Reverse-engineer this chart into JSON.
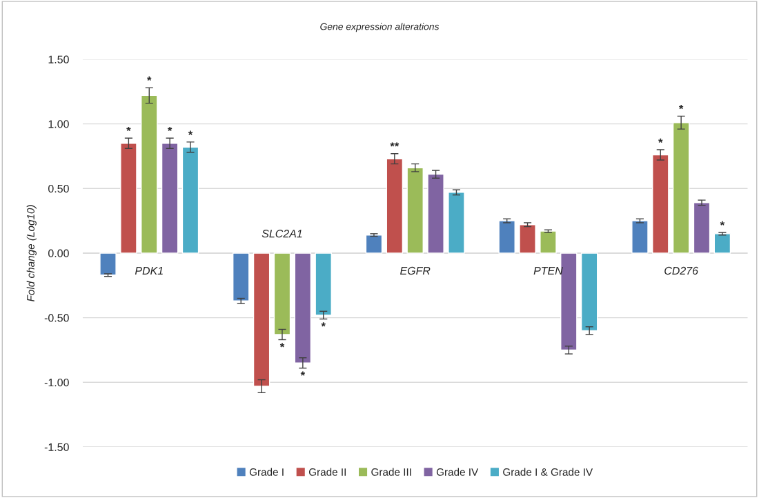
{
  "chart_data": {
    "type": "bar",
    "title": "Gene expression alterations",
    "ylabel": "Fold change (Log10)",
    "categories": [
      "PDK1",
      "SLC2A1",
      "EGFR",
      "PTEN",
      "CD276"
    ],
    "series": [
      {
        "name": "Grade I",
        "color": "#4f81bd",
        "values": [
          -0.17,
          -0.37,
          0.14,
          0.25,
          0.25
        ],
        "errors": [
          0.01,
          0.02,
          0.01,
          0.015,
          0.015
        ],
        "value_labels": [
          null,
          null,
          null,
          null,
          null
        ]
      },
      {
        "name": "Grade II",
        "color": "#c0504d",
        "values": [
          0.85,
          -1.03,
          0.73,
          0.22,
          0.76
        ],
        "errors": [
          0.04,
          0.05,
          0.04,
          0.015,
          0.04
        ],
        "value_labels": [
          "*",
          null,
          "**",
          null,
          "*"
        ]
      },
      {
        "name": "Grade III",
        "color": "#9bbb59",
        "values": [
          1.22,
          -0.63,
          0.66,
          0.17,
          1.01
        ],
        "errors": [
          0.06,
          0.04,
          0.03,
          0.01,
          0.05
        ],
        "value_labels": [
          "*",
          "*",
          null,
          null,
          "*"
        ]
      },
      {
        "name": "Grade IV",
        "color": "#8064a2",
        "values": [
          0.85,
          -0.85,
          0.61,
          -0.75,
          0.39
        ],
        "errors": [
          0.04,
          0.04,
          0.03,
          0.03,
          0.02
        ],
        "value_labels": [
          "*",
          "*",
          null,
          null,
          null
        ]
      },
      {
        "name": "Grade I & Grade IV",
        "color": "#4bacc6",
        "values": [
          0.82,
          -0.48,
          0.47,
          -0.6,
          0.15
        ],
        "errors": [
          0.04,
          0.03,
          0.02,
          0.03,
          0.01
        ],
        "value_labels": [
          "*",
          "*",
          null,
          null,
          "*"
        ]
      }
    ],
    "ylim": [
      -1.5,
      1.5
    ],
    "yticks": [
      {
        "value": -1.5,
        "label": "-1.50"
      },
      {
        "value": -1.0,
        "label": "-1.00"
      },
      {
        "value": -0.5,
        "label": "-0.50"
      },
      {
        "value": 0,
        "label": "0.00"
      },
      {
        "value": 0.5,
        "label": "0.50"
      },
      {
        "value": 1.0,
        "label": "1.00"
      },
      {
        "value": 1.5,
        "label": "1.50"
      }
    ],
    "grid": "y",
    "legend": "bottom"
  }
}
